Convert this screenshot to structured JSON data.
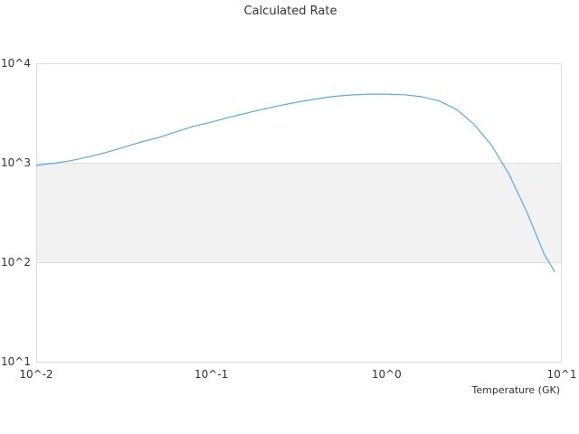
{
  "chart_data": {
    "type": "line",
    "title": "Calculated Rate",
    "xlabel": "Temperature (GK)",
    "ylabel": "",
    "x_scale": "log",
    "y_scale": "log",
    "xlim": [
      0.01,
      10
    ],
    "ylim": [
      10,
      10000
    ],
    "x_ticks": [
      {
        "value": 0.01,
        "label": "10^-2"
      },
      {
        "value": 0.1,
        "label": "10^-1"
      },
      {
        "value": 1,
        "label": "10^0"
      },
      {
        "value": 10,
        "label": "10^1"
      }
    ],
    "y_ticks": [
      {
        "value": 10,
        "label": "10^1"
      },
      {
        "value": 100,
        "label": "10^2"
      },
      {
        "value": 1000,
        "label": "10^3"
      },
      {
        "value": 10000,
        "label": "10^4"
      }
    ],
    "shaded_band": [
      100,
      1000
    ],
    "colors": {
      "line": "#5aa8e8",
      "band": "#f2f2f2",
      "grid": "#dddddd",
      "frame": "#dddddd"
    },
    "series": [
      {
        "x": [
          0.01,
          0.0126,
          0.0158,
          0.02,
          0.0251,
          0.0316,
          0.0398,
          0.05,
          0.063,
          0.0794,
          0.1,
          0.126,
          0.158,
          0.2,
          0.251,
          0.316,
          0.398,
          0.5,
          0.63,
          0.794,
          1.0,
          1.26,
          1.58,
          2.0,
          2.51,
          3.16,
          3.98,
          5.01,
          6.31,
          7.94,
          9.12
        ],
        "y": [
          940,
          990,
          1050,
          1150,
          1270,
          1430,
          1620,
          1790,
          2050,
          2330,
          2560,
          2860,
          3150,
          3470,
          3790,
          4100,
          4380,
          4650,
          4810,
          4900,
          4900,
          4830,
          4620,
          4180,
          3430,
          2430,
          1490,
          760,
          320,
          120,
          80
        ]
      }
    ]
  }
}
